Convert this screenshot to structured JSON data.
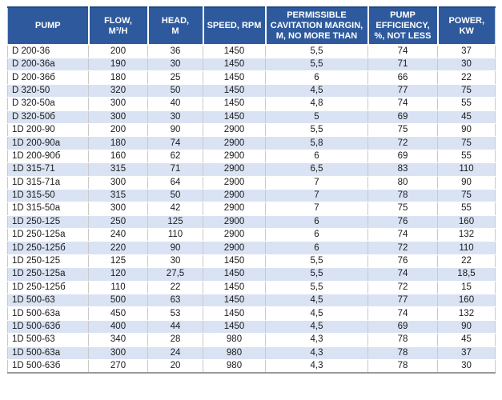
{
  "colors": {
    "header_bg": "#2e5a9d",
    "header_text": "#ffffff",
    "band_row_bg": "#dae3f3",
    "plain_row_bg": "#ffffff",
    "grid_line": "#c9c9c9",
    "outer_bottom_border": "#9a9a9a"
  },
  "table": {
    "columns": [
      {
        "id": "pump",
        "label": "PUMP"
      },
      {
        "id": "flow",
        "label": "FLOW,\nM³/H"
      },
      {
        "id": "head",
        "label": "HEAD,\nM"
      },
      {
        "id": "speed",
        "label": "SPEED, RPM"
      },
      {
        "id": "cavitation-margin",
        "label": "PERMISSIBLE\nCAVITATION MARGIN,\nM, NO MORE THAN"
      },
      {
        "id": "efficiency",
        "label": "PUMP\nEFFICIENCY,\n%, NOT LESS"
      },
      {
        "id": "power",
        "label": "POWER,\nKW"
      }
    ],
    "rows": [
      [
        "D 200-36",
        "200",
        "36",
        "1450",
        "5,5",
        "74",
        "37"
      ],
      [
        "D 200-36a",
        "190",
        "30",
        "1450",
        "5,5",
        "71",
        "30"
      ],
      [
        "D 200-36б",
        "180",
        "25",
        "1450",
        "6",
        "66",
        "22"
      ],
      [
        "D 320-50",
        "320",
        "50",
        "1450",
        "4,5",
        "77",
        "75"
      ],
      [
        "D 320-50a",
        "300",
        "40",
        "1450",
        "4,8",
        "74",
        "55"
      ],
      [
        "D 320-50б",
        "300",
        "30",
        "1450",
        "5",
        "69",
        "45"
      ],
      [
        "1D 200-90",
        "200",
        "90",
        "2900",
        "5,5",
        "75",
        "90"
      ],
      [
        "1D 200-90a",
        "180",
        "74",
        "2900",
        "5,8",
        "72",
        "75"
      ],
      [
        "1D 200-90б",
        "160",
        "62",
        "2900",
        "6",
        "69",
        "55"
      ],
      [
        "1D 315-71",
        "315",
        "71",
        "2900",
        "6,5",
        "83",
        "110"
      ],
      [
        "1D 315-71a",
        "300",
        "64",
        "2900",
        "7",
        "80",
        "90"
      ],
      [
        "1D 315-50",
        "315",
        "50",
        "2900",
        "7",
        "78",
        "75"
      ],
      [
        "1D 315-50a",
        "300",
        "42",
        "2900",
        "7",
        "75",
        "55"
      ],
      [
        "1D 250-125",
        "250",
        "125",
        "2900",
        "6",
        "76",
        "160"
      ],
      [
        "1D 250-125a",
        "240",
        "110",
        "2900",
        "6",
        "74",
        "132"
      ],
      [
        "1D 250-125б",
        "220",
        "90",
        "2900",
        "6",
        "72",
        "110"
      ],
      [
        "1D 250-125",
        "125",
        "30",
        "1450",
        "5,5",
        "76",
        "22"
      ],
      [
        "1D 250-125a",
        "120",
        "27,5",
        "1450",
        "5,5",
        "74",
        "18,5"
      ],
      [
        "1D 250-125б",
        "110",
        "22",
        "1450",
        "5,5",
        "72",
        "15"
      ],
      [
        "1D 500-63",
        "500",
        "63",
        "1450",
        "4,5",
        "77",
        "160"
      ],
      [
        "1D 500-63a",
        "450",
        "53",
        "1450",
        "4,5",
        "74",
        "132"
      ],
      [
        "1D 500-63б",
        "400",
        "44",
        "1450",
        "4,5",
        "69",
        "90"
      ],
      [
        "1D 500-63",
        "340",
        "28",
        "980",
        "4,3",
        "78",
        "45"
      ],
      [
        "1D 500-63a",
        "300",
        "24",
        "980",
        "4,3",
        "78",
        "37"
      ],
      [
        "1D 500-63б",
        "270",
        "20",
        "980",
        "4,3",
        "78",
        "30"
      ]
    ]
  }
}
